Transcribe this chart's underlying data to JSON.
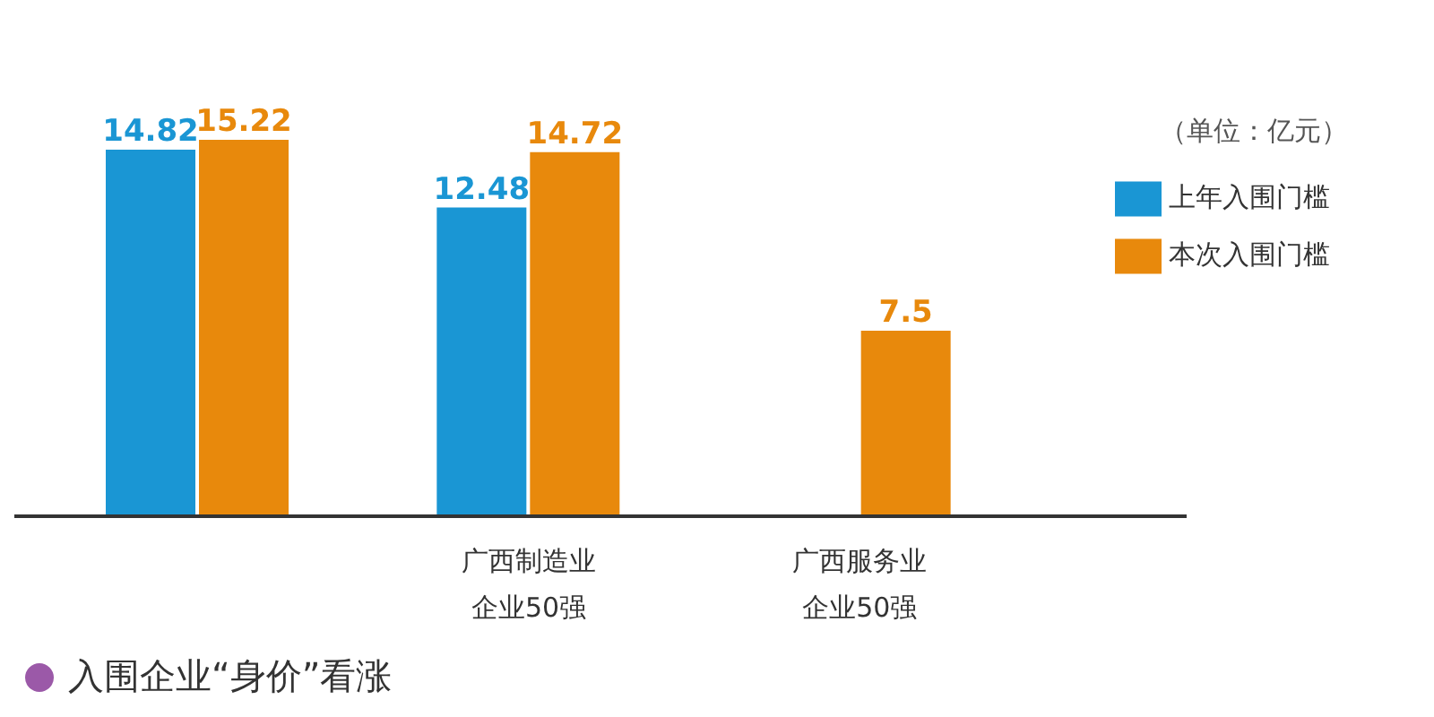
{
  "chart_data": {
    "type": "bar",
    "categories": [
      null,
      "广西制造业企业50强",
      "广西服务业企业50强"
    ],
    "series": [
      {
        "name": "上年入围门槛",
        "color": "#1a96d4",
        "values": [
          14.82,
          12.48,
          null
        ]
      },
      {
        "name": "本次入围门槛",
        "color": "#e8890c",
        "values": [
          15.22,
          14.72,
          7.5
        ]
      }
    ],
    "data_labels": true,
    "legend": "top right",
    "annotations": [
      "（单位：亿元）",
      "入围企业“身价”看涨"
    ]
  }
}
